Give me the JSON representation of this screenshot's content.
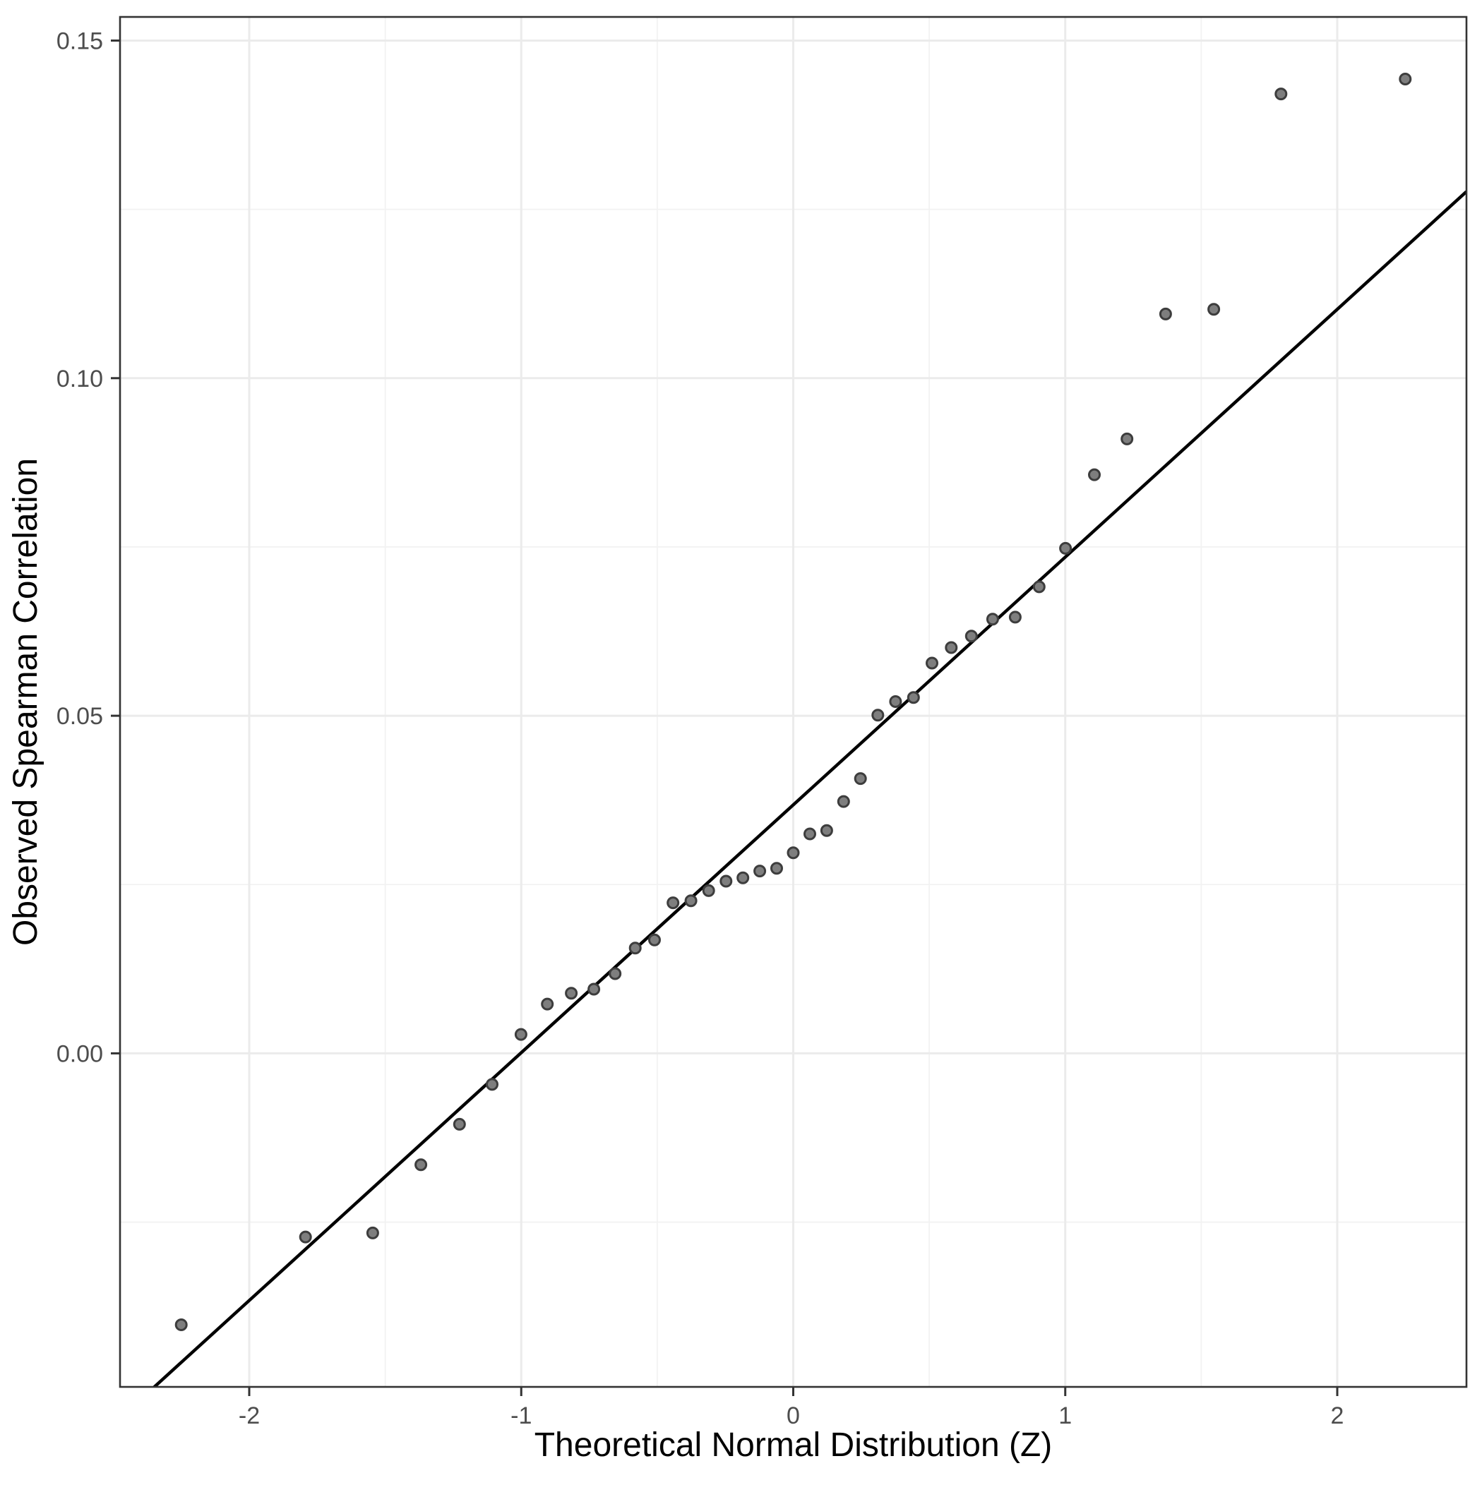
{
  "figure": {
    "background_color": "#FFFFFF",
    "panel_background_color": "#FFFFFF",
    "panel_border_color": "#333333",
    "grid_major_color": "#EBEBEB",
    "grid_minor_color": "#F2F2F2",
    "tick_color": "#333333",
    "tick_label_color": "#4D4D4D",
    "axis_title_color": "#000000"
  },
  "chart_data": {
    "type": "scatter",
    "title": "",
    "xlabel": "Theoretical Normal Distribution (Z)",
    "ylabel": "Observed Spearman Correlation",
    "xlim": [
      -2.475,
      2.475
    ],
    "ylim": [
      -0.0494,
      0.1535
    ],
    "grid": "on",
    "legend": "none",
    "x_ticks": [
      -2,
      -1,
      0,
      1,
      2
    ],
    "x_tick_labels": [
      "-2",
      "-1",
      "0",
      "1",
      "2"
    ],
    "x_minor_ticks": [
      -1.5,
      -0.5,
      0.5,
      1.5
    ],
    "y_ticks": [
      0.0,
      0.05,
      0.1,
      0.15
    ],
    "y_tick_labels": [
      "0.00",
      "0.05",
      "0.10",
      "0.15"
    ],
    "y_minor_ticks": [
      -0.025,
      0.025,
      0.075,
      0.125
    ],
    "series": [
      {
        "name": "qq-points",
        "marker_fill": "#7E7E7E",
        "marker_stroke": "#3D3D3D",
        "points": [
          [
            -2.25,
            -0.0402
          ],
          [
            -1.793,
            -0.0272
          ],
          [
            -1.546,
            -0.0266
          ],
          [
            -1.369,
            -0.0165
          ],
          [
            -1.227,
            -0.0105
          ],
          [
            -1.107,
            -0.0046
          ],
          [
            -1.001,
            0.0028
          ],
          [
            -0.904,
            0.0073
          ],
          [
            -0.816,
            0.0089
          ],
          [
            -0.733,
            0.0095
          ],
          [
            -0.655,
            0.0118
          ],
          [
            -0.581,
            0.0156
          ],
          [
            -0.51,
            0.0168
          ],
          [
            -0.442,
            0.0223
          ],
          [
            -0.376,
            0.0226
          ],
          [
            -0.311,
            0.0241
          ],
          [
            -0.247,
            0.0255
          ],
          [
            -0.185,
            0.026
          ],
          [
            -0.123,
            0.027
          ],
          [
            -0.061,
            0.0274
          ],
          [
            0.0,
            0.0297
          ],
          [
            0.061,
            0.0325
          ],
          [
            0.123,
            0.033
          ],
          [
            0.185,
            0.0373
          ],
          [
            0.247,
            0.0407
          ],
          [
            0.311,
            0.0501
          ],
          [
            0.376,
            0.0521
          ],
          [
            0.442,
            0.0527
          ],
          [
            0.51,
            0.0578
          ],
          [
            0.581,
            0.0601
          ],
          [
            0.655,
            0.0618
          ],
          [
            0.733,
            0.0643
          ],
          [
            0.816,
            0.0646
          ],
          [
            0.904,
            0.0691
          ],
          [
            1.001,
            0.0748
          ],
          [
            1.107,
            0.0857
          ],
          [
            1.227,
            0.091
          ],
          [
            1.369,
            0.1095
          ],
          [
            1.546,
            0.1102
          ],
          [
            1.793,
            0.1421
          ],
          [
            2.25,
            0.1443
          ]
        ]
      }
    ],
    "reference_line": {
      "name": "qq-line",
      "slope": 0.0367,
      "intercept": 0.0368,
      "color": "#000000"
    }
  }
}
